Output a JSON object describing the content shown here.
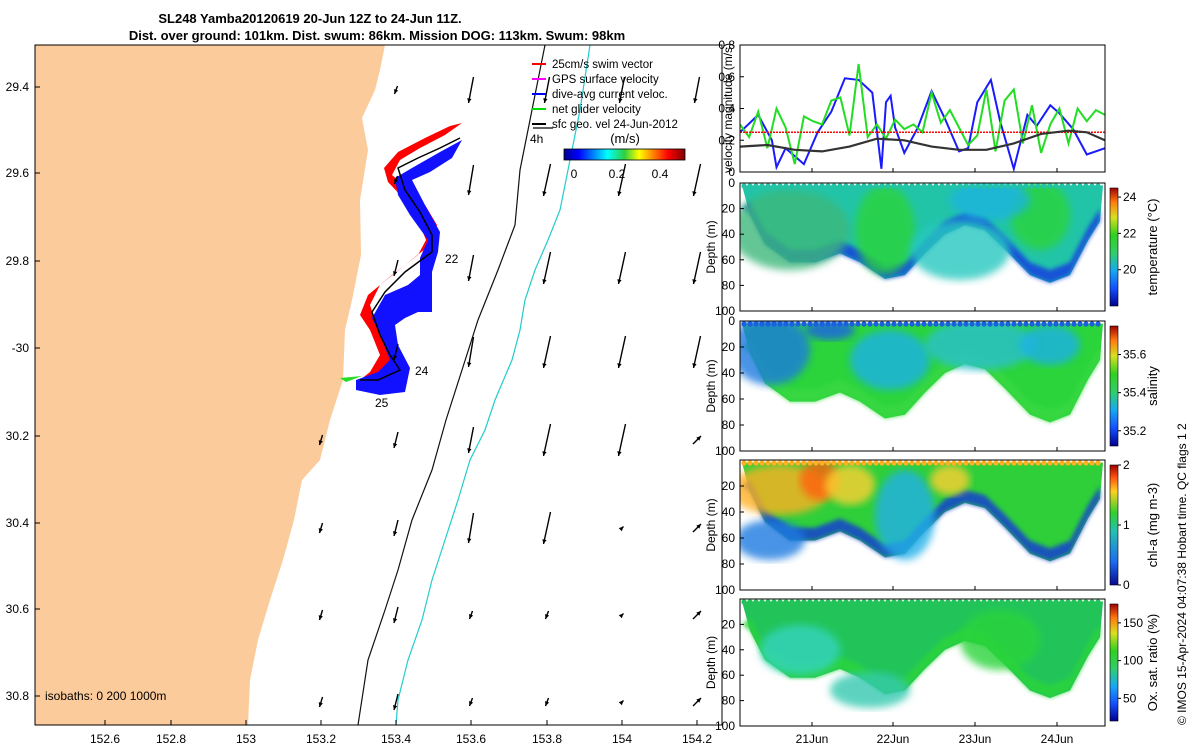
{
  "title_line1": "SL248 Yamba20120619 20-Jun 12Z to 24-Jun 11Z.",
  "title_line2": "Dist. over ground: 101km. Dist. swum: 86km. Mission DOG: 113km. Swum: 98km",
  "footer": "© IMOS 15-Apr-2024 04:07:38 Hobart time. QC flags 1  2",
  "map": {
    "lon_ticks": [
      "152.6",
      "152.8",
      "153",
      "153.2",
      "153.4",
      "153.6",
      "153.8",
      "154",
      "154.2"
    ],
    "lat_ticks": [
      "29.4",
      "29.6",
      "29.8",
      "-30",
      "30.2",
      "30.4",
      "30.6",
      "30.8"
    ],
    "isobaths_label": "isobaths: 0   200  1000m",
    "legend": [
      {
        "label": "25cm/s swim vector",
        "color": "#ff0000"
      },
      {
        "label": "GPS surface velocity",
        "color": "#ff00ff"
      },
      {
        "label": "dive-avg current veloc.",
        "color": "#0000ff"
      },
      {
        "label": "net glider velocity",
        "color": "#00dd00"
      },
      {
        "label": "sfc geo. vel 24-Jun-2012",
        "color": "#000000"
      }
    ],
    "units_label": "(m/s)",
    "colorbar_ticks": [
      "0",
      "0.2",
      "0.4"
    ],
    "track_day_labels": [
      "22",
      "24",
      "25"
    ],
    "vector_scale_label": "4h"
  },
  "chart_data": [
    {
      "type": "line",
      "title": "velocity magnitude",
      "ylabel": "velocity magnitude (m/s)",
      "ylim": [
        0,
        0.8
      ],
      "yticks": [
        "0",
        "0.2",
        "0.4",
        "0.6",
        "0.8"
      ],
      "xlim": [
        20.5,
        24.5
      ],
      "series": [
        {
          "name": "dive-avg current veloc.",
          "color": "#1a1aff",
          "x": [
            20.5,
            20.7,
            20.85,
            20.9,
            21.0,
            21.2,
            21.35,
            21.5,
            21.65,
            21.8,
            21.95,
            22.05,
            22.1,
            22.15,
            22.2,
            22.3,
            22.45,
            22.6,
            22.75,
            22.9,
            23.0,
            23.1,
            23.25,
            23.35,
            23.5,
            23.65,
            23.75,
            23.9,
            24.0,
            24.15,
            24.3,
            24.5
          ],
          "y": [
            0.25,
            0.36,
            0.2,
            0.03,
            0.15,
            0.05,
            0.25,
            0.38,
            0.59,
            0.58,
            0.5,
            0.02,
            0.44,
            0.48,
            0.28,
            0.12,
            0.28,
            0.51,
            0.33,
            0.13,
            0.15,
            0.44,
            0.58,
            0.32,
            0.02,
            0.36,
            0.29,
            0.42,
            0.37,
            0.27,
            0.11,
            0.15
          ]
        },
        {
          "name": "net glider velocity",
          "color": "#22dd22",
          "x": [
            20.5,
            20.6,
            20.7,
            20.8,
            20.9,
            21.0,
            21.1,
            21.2,
            21.3,
            21.4,
            21.5,
            21.6,
            21.7,
            21.8,
            21.9,
            22.0,
            22.1,
            22.2,
            22.3,
            22.4,
            22.5,
            22.6,
            22.7,
            22.8,
            22.9,
            23.0,
            23.1,
            23.2,
            23.3,
            23.4,
            23.5,
            23.6,
            23.7,
            23.8,
            23.9,
            24.0,
            24.1,
            24.2,
            24.3,
            24.4,
            24.5
          ],
          "y": [
            0.3,
            0.22,
            0.38,
            0.15,
            0.4,
            0.28,
            0.05,
            0.35,
            0.32,
            0.3,
            0.45,
            0.47,
            0.23,
            0.68,
            0.22,
            0.3,
            0.21,
            0.33,
            0.27,
            0.3,
            0.25,
            0.5,
            0.31,
            0.39,
            0.28,
            0.17,
            0.23,
            0.52,
            0.13,
            0.45,
            0.52,
            0.18,
            0.42,
            0.12,
            0.3,
            0.4,
            0.18,
            0.4,
            0.32,
            0.39,
            0.36
          ]
        },
        {
          "name": "swim vector",
          "color": "#ff0000",
          "x": [
            20.5,
            24.5
          ],
          "y": [
            0.25,
            0.25
          ]
        },
        {
          "name": "sfc geo. vel",
          "color": "#333333",
          "x": [
            20.5,
            20.8,
            21.1,
            21.4,
            21.7,
            22.0,
            22.3,
            22.6,
            22.9,
            23.2,
            23.5,
            23.8,
            24.1,
            24.3,
            24.5
          ],
          "y": [
            0.16,
            0.17,
            0.14,
            0.13,
            0.16,
            0.21,
            0.2,
            0.16,
            0.14,
            0.14,
            0.18,
            0.24,
            0.26,
            0.25,
            0.2
          ]
        }
      ]
    },
    {
      "type": "heatmap",
      "title": "temperature",
      "ylabel": "Depth (m)",
      "cbar_label": "temperature (°C)",
      "ylim": [
        100,
        0
      ],
      "yticks": [
        "0",
        "20",
        "40",
        "60",
        "80",
        "100"
      ],
      "cbar_ticks": [
        "20",
        "22",
        "24"
      ],
      "cbar_range": [
        18,
        24.5
      ]
    },
    {
      "type": "heatmap",
      "title": "salinity",
      "ylabel": "Depth (m)",
      "cbar_label": "salinity",
      "ylim": [
        100,
        0
      ],
      "yticks": [
        "0",
        "20",
        "40",
        "60",
        "80",
        "100"
      ],
      "cbar_ticks": [
        "35.2",
        "35.4",
        "35.6"
      ],
      "cbar_range": [
        35.12,
        35.75
      ]
    },
    {
      "type": "heatmap",
      "title": "chl-a",
      "ylabel": "Depth (m)",
      "cbar_label": "chl-a (mg m-3)",
      "ylim": [
        100,
        0
      ],
      "yticks": [
        "20",
        "40",
        "60",
        "80",
        "100"
      ],
      "cbar_ticks": [
        "0",
        "1",
        "2"
      ],
      "cbar_range": [
        0,
        2
      ]
    },
    {
      "type": "heatmap",
      "title": "oxygen",
      "ylabel": "Depth (m)",
      "cbar_label": "Ox. sat. ratio (%)",
      "ylim": [
        100,
        0
      ],
      "yticks": [
        "20",
        "40",
        "60",
        "80",
        "100"
      ],
      "cbar_ticks": [
        "50",
        "100",
        "150"
      ],
      "cbar_range": [
        20,
        175
      ]
    }
  ],
  "time_axis_ticks": [
    "21Jun",
    "22Jun",
    "23Jun",
    "24Jun"
  ]
}
